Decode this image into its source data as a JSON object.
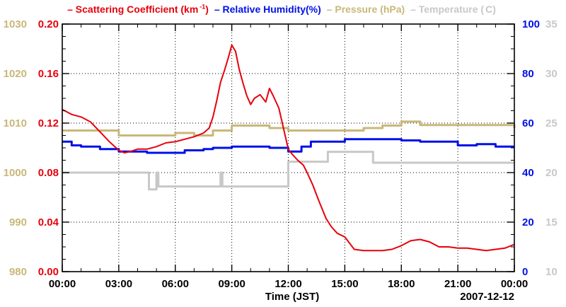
{
  "chart_data": {
    "type": "line",
    "title": "",
    "legend": [
      {
        "dash": "–",
        "label_pre": "Scattering Coefficient (km",
        "label_sup": "-1",
        "label_post": ")",
        "color": "#e8000b"
      },
      {
        "dash": "–",
        "label_pre": "Relative Humidity(%)",
        "label_sup": "",
        "label_post": "",
        "color": "#0010e8"
      },
      {
        "dash": "–",
        "label_pre": "Pressure (hPa)",
        "label_sup": "",
        "label_post": "",
        "color": "#c8b878"
      },
      {
        "dash": "–",
        "label_pre": "Temperature (",
        "label_sup": "",
        "label_post": "C)",
        "color": "#c8c8c8"
      }
    ],
    "xlabel": "Time (JST)",
    "date_label": "2007-12-12",
    "xlim": [
      0,
      24
    ],
    "x_ticks": [
      "00:00",
      "03:00",
      "06:00",
      "09:00",
      "12:00",
      "15:00",
      "18:00",
      "21:00",
      "00:00"
    ],
    "axes": {
      "pressure": {
        "ylim": [
          980,
          1030
        ],
        "ticks": [
          "980",
          "990",
          "1000",
          "1010",
          "1020",
          "1030"
        ],
        "color": "#c8b878"
      },
      "scattering": {
        "ylim": [
          0,
          0.2
        ],
        "ticks": [
          "0.00",
          "0.04",
          "0.08",
          "0.12",
          "0.16",
          "0.20"
        ],
        "color": "#e8000b"
      },
      "humidity": {
        "ylim": [
          0,
          100
        ],
        "ticks": [
          "0",
          "20",
          "40",
          "60",
          "80",
          "100"
        ],
        "color": "#0010e8"
      },
      "temperature": {
        "ylim": [
          10,
          35
        ],
        "ticks": [
          "10",
          "15",
          "20",
          "25",
          "30",
          "35"
        ],
        "color": "#c8c8c8"
      }
    },
    "series": [
      {
        "name": "Scattering Coefficient",
        "axis": "scattering",
        "color": "#e8000b",
        "step": false,
        "x": [
          0,
          0.5,
          1.0,
          1.5,
          2.0,
          2.5,
          3.0,
          3.3,
          3.6,
          4.0,
          4.5,
          5.0,
          5.5,
          6.0,
          6.5,
          7.0,
          7.5,
          7.8,
          8.0,
          8.2,
          8.4,
          8.6,
          8.8,
          9.0,
          9.2,
          9.4,
          9.6,
          9.8,
          10.0,
          10.2,
          10.5,
          10.8,
          11.0,
          11.2,
          11.5,
          11.8,
          12.0,
          12.2,
          12.5,
          12.8,
          13.0,
          13.3,
          13.6,
          14.0,
          14.3,
          14.6,
          15.0,
          15.5,
          16.0,
          16.5,
          17.0,
          17.5,
          18.0,
          18.5,
          19.0,
          19.5,
          20.0,
          20.5,
          21.0,
          21.5,
          22.0,
          22.5,
          23.0,
          23.5,
          24.0
        ],
        "values": [
          0.131,
          0.127,
          0.125,
          0.121,
          0.113,
          0.105,
          0.098,
          0.096,
          0.097,
          0.099,
          0.099,
          0.101,
          0.104,
          0.105,
          0.107,
          0.109,
          0.112,
          0.116,
          0.125,
          0.138,
          0.153,
          0.162,
          0.172,
          0.183,
          0.178,
          0.163,
          0.152,
          0.142,
          0.135,
          0.14,
          0.143,
          0.137,
          0.148,
          0.142,
          0.132,
          0.112,
          0.099,
          0.095,
          0.09,
          0.086,
          0.08,
          0.07,
          0.058,
          0.043,
          0.036,
          0.031,
          0.028,
          0.018,
          0.017,
          0.017,
          0.017,
          0.018,
          0.021,
          0.025,
          0.026,
          0.024,
          0.02,
          0.02,
          0.019,
          0.019,
          0.018,
          0.017,
          0.018,
          0.019,
          0.022
        ]
      },
      {
        "name": "Relative Humidity",
        "axis": "humidity",
        "color": "#0010e8",
        "step": true,
        "x": [
          0,
          0.5,
          1.0,
          2.0,
          3.0,
          4.5,
          6.5,
          7.5,
          8.0,
          9.0,
          10.0,
          11.0,
          12.0,
          12.7,
          13.2,
          15.0,
          17.0,
          18.0,
          19.0,
          21.0,
          22.0,
          23.0,
          24.0
        ],
        "values": [
          52.5,
          51.0,
          50.5,
          49.5,
          48.5,
          48.0,
          49.0,
          49.5,
          50.0,
          50.5,
          50.5,
          50.0,
          48.5,
          50.5,
          52.5,
          53.5,
          53.5,
          53.0,
          52.5,
          51.0,
          51.5,
          50.5,
          50.5
        ]
      },
      {
        "name": "Pressure",
        "axis": "pressure",
        "color": "#c8b878",
        "step": true,
        "x": [
          0,
          3.0,
          6.0,
          7.0,
          8.0,
          9.0,
          10.5,
          11.0,
          12.0,
          15.0,
          16.0,
          17.0,
          18.0,
          19.0,
          24.0
        ],
        "values": [
          1008.5,
          1007.5,
          1008.0,
          1007.5,
          1008.5,
          1009.5,
          1009.5,
          1009.0,
          1008.5,
          1008.5,
          1009.0,
          1009.5,
          1010.3,
          1009.6,
          1009.0
        ]
      },
      {
        "name": "Temperature",
        "axis": "temperature",
        "color": "#c8c8c8",
        "step": true,
        "x": [
          0,
          4.6,
          5.0,
          5.1,
          7.6,
          8.4,
          8.5,
          12.0,
          14.1,
          16.5,
          24.0
        ],
        "values": [
          20.0,
          18.3,
          20.0,
          18.6,
          18.6,
          20.0,
          18.6,
          21.1,
          22.1,
          21.0,
          21.0
        ]
      }
    ]
  }
}
